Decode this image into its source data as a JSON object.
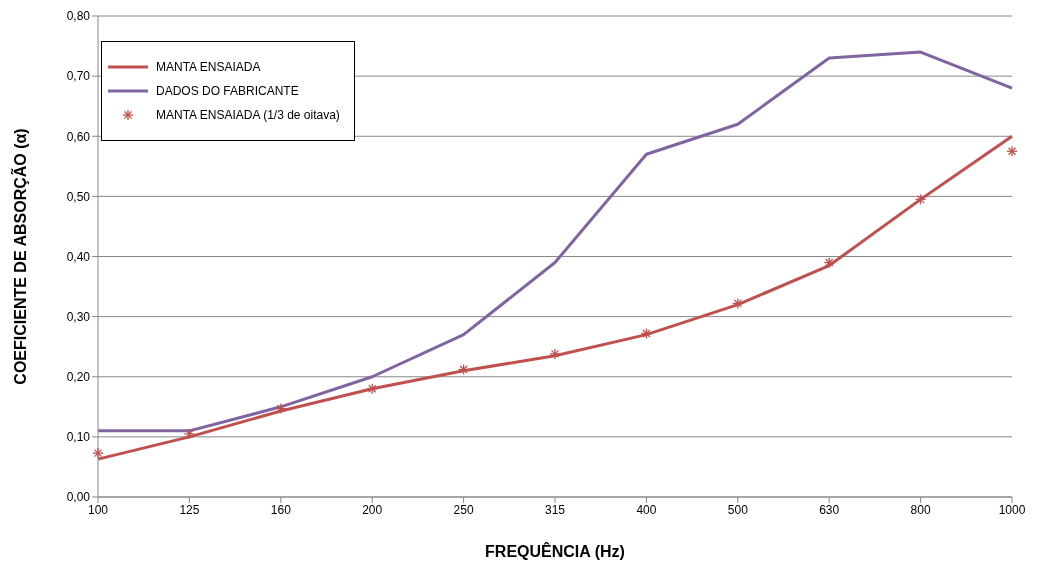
{
  "chart_data": {
    "type": "line",
    "xlabel": "FREQUÊNCIA (Hz)",
    "ylabel": "COEFICIENTE DE ABSORÇÃO (α)",
    "categories": [
      "100",
      "125",
      "160",
      "200",
      "250",
      "315",
      "400",
      "500",
      "630",
      "800",
      "1000"
    ],
    "series": [
      {
        "name": "MANTA ENSAIADA",
        "color": "#c0504d",
        "values": [
          0.063,
          0.1,
          0.143,
          0.18,
          0.21,
          0.235,
          0.27,
          0.32,
          0.385,
          0.495,
          0.6
        ]
      },
      {
        "name": "DADOS DO FABRICANTE",
        "color": "#8064a2",
        "values": [
          0.11,
          0.11,
          0.15,
          0.2,
          0.27,
          0.39,
          0.57,
          0.62,
          0.73,
          0.74,
          0.68
        ]
      },
      {
        "name": "MANTA ENSAIADA (1/3 de oitava)",
        "type": "scatter",
        "color": "#c0504d",
        "marker": "cross",
        "values": [
          0.073,
          0.105,
          0.147,
          0.18,
          0.212,
          0.238,
          0.272,
          0.322,
          0.39,
          0.495,
          0.575
        ]
      }
    ],
    "ylim": [
      0,
      0.8
    ],
    "yticks": [
      {
        "value": 0,
        "label": "0,00"
      },
      {
        "value": 0.1,
        "label": "0,10"
      },
      {
        "value": 0.2,
        "label": "0,20"
      },
      {
        "value": 0.3,
        "label": "0,30"
      },
      {
        "value": 0.4,
        "label": "0,40"
      },
      {
        "value": 0.5,
        "label": "0,50"
      },
      {
        "value": 0.6,
        "label": "0,60"
      },
      {
        "value": 0.7,
        "label": "0,70"
      },
      {
        "value": 0.8,
        "label": "0,80"
      }
    ],
    "grid": "y",
    "legend": "top left"
  }
}
